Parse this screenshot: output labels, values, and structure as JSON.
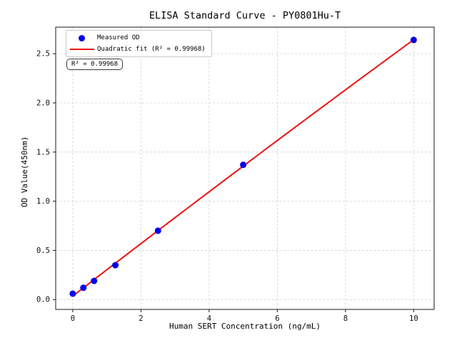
{
  "chart_data": {
    "type": "scatter",
    "title": "ELISA Standard Curve - PY0801Hu-T",
    "xlabel": "Human SERT Concentration (ng/mL)",
    "ylabel": "OD Value(450nm)",
    "xlim": [
      -0.5,
      10.6
    ],
    "ylim": [
      -0.1,
      2.77
    ],
    "x_tick_values": [
      0,
      2,
      4,
      6,
      8,
      10
    ],
    "x_tick_labels": [
      "0",
      "2",
      "4",
      "6",
      "8",
      "10"
    ],
    "y_tick_values": [
      0.0,
      0.5,
      1.0,
      1.5,
      2.0,
      2.5
    ],
    "y_tick_labels": [
      "0.0",
      "0.5",
      "1.0",
      "1.5",
      "2.0",
      "2.5"
    ],
    "grid": true,
    "legend_position": "upper left",
    "series": [
      {
        "name": "Measured OD",
        "type": "scatter",
        "color": "#0000ee",
        "points": [
          {
            "x": 0,
            "y": 0.06
          },
          {
            "x": 0.312,
            "y": 0.12
          },
          {
            "x": 0.625,
            "y": 0.19
          },
          {
            "x": 1.25,
            "y": 0.35
          },
          {
            "x": 2.5,
            "y": 0.7
          },
          {
            "x": 5,
            "y": 1.37
          },
          {
            "x": 10,
            "y": 2.64
          }
        ]
      },
      {
        "name": "Quadratic fit (R² = 0.99968)",
        "type": "quadratic_fit",
        "color": "#ee1111",
        "r_squared": 0.99968
      }
    ],
    "legend": {
      "items": [
        {
          "marker": "dot",
          "label": "Measured OD"
        },
        {
          "marker": "line",
          "label": "Quadratic fit (R² = 0.99968)"
        }
      ]
    },
    "annotation": "R² = 0.99968",
    "colors": {
      "points": "#0000ee",
      "fit_line": "#ee1111",
      "grid": "#cfcfcf",
      "frame": "#1a1a1a"
    }
  }
}
